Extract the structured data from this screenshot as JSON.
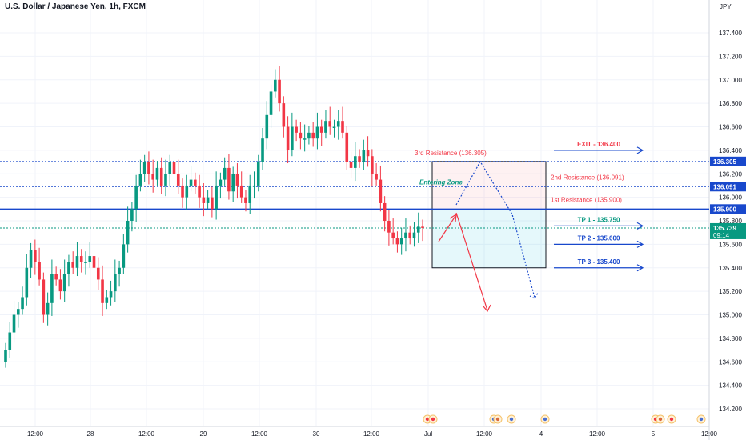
{
  "header": {
    "title": "U.S. Dollar / Japanese Yen, 1h, FXCM",
    "currency": "JPY"
  },
  "chart_data": {
    "type": "candlestick",
    "ylim": [
      134.1,
      137.74
    ],
    "y_ticks": [
      "137.400",
      "137.200",
      "137.000",
      "136.800",
      "136.600",
      "136.400",
      "136.200",
      "136.000",
      "135.800",
      "135.600",
      "135.400",
      "135.200",
      "135.000",
      "134.800",
      "134.600",
      "134.400",
      "134.200"
    ],
    "x_ticks": [
      "12:00",
      "28",
      "12:00",
      "29",
      "12:00",
      "30",
      "12:00",
      "Jul",
      "12:00",
      "4",
      "12:00",
      "5",
      "12:00"
    ],
    "bull_color": "#089981",
    "bear_color": "#f23645",
    "closes": [
      134.7,
      134.85,
      135.0,
      135.05,
      135.15,
      135.4,
      135.55,
      135.45,
      135.3,
      135.0,
      135.1,
      135.35,
      135.3,
      135.2,
      135.35,
      135.45,
      135.4,
      135.5,
      135.45,
      135.45,
      135.5,
      135.4,
      135.3,
      135.1,
      135.15,
      135.2,
      135.35,
      135.4,
      135.6,
      135.8,
      135.9,
      136.1,
      136.2,
      136.3,
      136.2,
      136.15,
      136.25,
      136.1,
      136.2,
      136.3,
      136.2,
      136.1,
      136.0,
      136.1,
      136.15,
      136.1,
      136.0,
      135.95,
      136.0,
      135.9,
      136.1,
      136.15,
      136.25,
      136.05,
      136.2,
      136.1,
      136.0,
      135.95,
      136.1,
      136.1,
      136.3,
      136.5,
      136.7,
      136.9,
      137.0,
      136.8,
      136.6,
      136.4,
      136.6,
      136.55,
      136.5,
      136.5,
      136.55,
      136.5,
      136.6,
      136.55,
      136.65,
      136.6,
      136.6,
      136.65,
      136.55,
      136.3,
      136.25,
      136.35,
      136.3,
      136.4,
      136.35,
      136.2,
      136.15,
      135.95,
      135.8,
      135.7,
      135.65,
      135.6,
      135.65,
      135.7,
      135.65,
      135.7,
      135.75,
      135.739
    ],
    "price_levels": [
      {
        "label": "136.305",
        "value": 136.305,
        "style": "dotted",
        "color": "#1848cc"
      },
      {
        "label": "136.091",
        "value": 136.091,
        "style": "dotted",
        "color": "#1848cc"
      },
      {
        "label": "135.900",
        "value": 135.9,
        "style": "solid",
        "color": "#1848cc"
      },
      {
        "label": "135.739",
        "value": 135.739,
        "style": "dotted",
        "color": "#089981",
        "sub": "09:14"
      }
    ],
    "resistances": [
      {
        "text": "3rd Resistance (136.305)",
        "value": 136.305
      },
      {
        "text": "2nd Resistance (136.091)",
        "value": 136.091
      },
      {
        "text": "1st Resistance (135.900)",
        "value": 135.9
      }
    ],
    "targets": [
      {
        "text": "EXIT - 136.400",
        "value": 136.4,
        "color": "#f23645"
      },
      {
        "text": "TP 1 - 135.750",
        "value": 135.75,
        "color": "#089981"
      },
      {
        "text": "TP 2 - 135.600",
        "value": 135.6,
        "color": "#1848cc"
      },
      {
        "text": "TP 3 - 135.400",
        "value": 135.4,
        "color": "#1848cc"
      }
    ],
    "zone_label": "Entering Zone",
    "zone_top": 136.305,
    "zone_mid": 135.9,
    "zone_bottom": 135.4
  }
}
